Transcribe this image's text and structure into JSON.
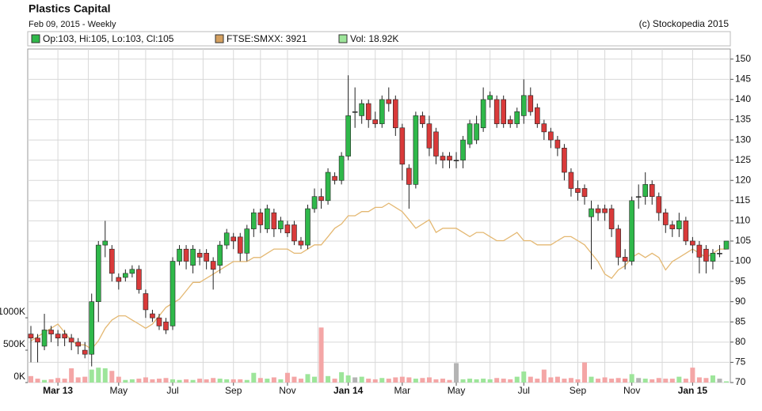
{
  "header": {
    "title": "Plastics Capital",
    "subtitle": "Feb 09, 2015 - Weekly",
    "copyright": "(c) Stockopedia 2015"
  },
  "legend": [
    "Op:103, Hi:105, Lo:103, Cl:105",
    "FTSE:SMXX: 3921",
    "Vol: 18.92K"
  ],
  "legend_colors": [
    "#2fb84a",
    "#d4a060",
    "#9de59a"
  ],
  "chart_data": {
    "type": "candlestick",
    "categories": [
      null,
      null,
      null,
      null,
      "Mar 13",
      null,
      null,
      null,
      null,
      null,
      null,
      null,
      null,
      "May",
      null,
      null,
      null,
      null,
      null,
      null,
      null,
      "Jul",
      null,
      null,
      null,
      null,
      null,
      null,
      null,
      null,
      "Sep",
      null,
      null,
      null,
      null,
      null,
      null,
      null,
      "Nov",
      null,
      null,
      null,
      null,
      null,
      null,
      null,
      null,
      "Jan 14",
      null,
      null,
      null,
      null,
      null,
      null,
      null,
      "Mar",
      null,
      null,
      null,
      null,
      null,
      null,
      null,
      "May",
      null,
      null,
      null,
      null,
      null,
      null,
      null,
      null,
      null,
      "Jul",
      null,
      null,
      null,
      null,
      null,
      null,
      null,
      "Sep",
      null,
      null,
      null,
      null,
      null,
      null,
      null,
      "Nov",
      null,
      null,
      null,
      null,
      null,
      null,
      null,
      null,
      "Jan 15",
      null,
      null,
      null,
      null,
      null
    ],
    "open": [
      82,
      81,
      79,
      83,
      82,
      82,
      81,
      80,
      78,
      77,
      90,
      104,
      103,
      96,
      96,
      97,
      98,
      92,
      87,
      86,
      85,
      84,
      100,
      103,
      99,
      102,
      102,
      100,
      99,
      104,
      106,
      106,
      102,
      108,
      112,
      108,
      112,
      108,
      109,
      109,
      105,
      104,
      113,
      116,
      115,
      121,
      120,
      126,
      137,
      136,
      139,
      135,
      134,
      140,
      140,
      133,
      123,
      119,
      136,
      134,
      132,
      126,
      126,
      125,
      125,
      129,
      130,
      133,
      140,
      140,
      140,
      135,
      134,
      136,
      141,
      138,
      134,
      132,
      130,
      128,
      122,
      118,
      118,
      111,
      113,
      113,
      113,
      108,
      101,
      100,
      116,
      116,
      119,
      116,
      112,
      109,
      108,
      110,
      105,
      104,
      103,
      100,
      102,
      103
    ],
    "high": [
      84,
      82,
      87,
      84,
      83,
      83,
      82,
      81,
      80,
      92,
      105,
      110,
      104,
      97,
      98,
      99,
      99,
      93,
      88,
      87,
      86,
      101,
      104,
      104,
      104,
      103,
      103,
      101,
      105,
      108,
      107,
      107,
      109,
      113,
      113,
      114,
      113,
      111,
      110,
      110,
      106,
      114,
      118,
      118,
      123,
      122,
      127,
      146,
      143,
      140,
      140,
      137,
      141,
      143,
      141,
      134,
      124,
      137,
      137,
      136,
      133,
      127,
      127,
      127,
      131,
      135,
      136,
      143,
      142,
      141,
      141,
      136,
      138,
      145,
      143,
      139,
      135,
      133,
      131,
      129,
      123,
      120,
      119,
      115,
      114,
      114,
      114,
      109,
      103,
      116,
      119,
      122,
      120,
      117,
      113,
      110,
      112,
      111,
      106,
      105,
      104,
      103,
      104,
      105
    ],
    "low": [
      75,
      75,
      78,
      80,
      79,
      79,
      78,
      77,
      76,
      74,
      85,
      101,
      95,
      93,
      95,
      96,
      92,
      86,
      85,
      83,
      82,
      83,
      99,
      98,
      97,
      99,
      98,
      93,
      97,
      103,
      103,
      100,
      100,
      106,
      107,
      107,
      106,
      107,
      106,
      104,
      103,
      103,
      112,
      113,
      114,
      119,
      119,
      125,
      133,
      134,
      133,
      133,
      133,
      137,
      131,
      120,
      113,
      118,
      133,
      126,
      124,
      123,
      123,
      123,
      123,
      128,
      129,
      132,
      138,
      133,
      133,
      133,
      133,
      134,
      136,
      133,
      130,
      128,
      126,
      120,
      116,
      115,
      114,
      98,
      110,
      110,
      106,
      99,
      98,
      99,
      113,
      114,
      114,
      110,
      107,
      106,
      106,
      104,
      102,
      97,
      97,
      98,
      101,
      103
    ],
    "close": [
      81,
      80,
      83,
      82,
      81,
      81,
      80,
      79,
      77,
      90,
      104,
      105,
      97,
      95,
      97,
      98,
      93,
      88,
      86,
      84,
      83,
      100,
      103,
      100,
      103,
      101,
      100,
      98,
      104,
      107,
      105,
      102,
      108,
      112,
      109,
      113,
      108,
      110,
      107,
      105,
      104,
      113,
      116,
      115,
      122,
      120,
      126,
      136,
      137,
      139,
      135,
      134,
      140,
      139,
      133,
      124,
      119,
      136,
      134,
      128,
      126,
      125,
      125,
      125,
      130,
      134,
      134,
      140,
      141,
      134,
      134,
      134,
      137,
      141,
      137,
      134,
      132,
      130,
      128,
      122,
      118,
      117,
      116,
      113,
      112,
      112,
      108,
      101,
      100,
      115,
      116,
      119,
      116,
      112,
      109,
      108,
      110,
      105,
      104,
      101,
      100,
      102,
      102,
      105
    ],
    "volume": [
      100000,
      60000,
      40000,
      50000,
      70000,
      60000,
      220000,
      80000,
      90000,
      200000,
      230000,
      220000,
      180000,
      90000,
      40000,
      50000,
      60000,
      80000,
      50000,
      60000,
      70000,
      50000,
      40000,
      50000,
      40000,
      60000,
      50000,
      70000,
      60000,
      50000,
      50000,
      50000,
      40000,
      150000,
      70000,
      60000,
      80000,
      50000,
      150000,
      90000,
      60000,
      130000,
      90000,
      850000,
      100000,
      60000,
      160000,
      110000,
      80000,
      90000,
      60000,
      50000,
      70000,
      60000,
      80000,
      90000,
      80000,
      60000,
      70000,
      80000,
      50000,
      60000,
      40000,
      300000,
      50000,
      60000,
      50000,
      60000,
      50000,
      70000,
      60000,
      50000,
      90000,
      170000,
      90000,
      60000,
      200000,
      80000,
      90000,
      60000,
      70000,
      50000,
      310000,
      90000,
      60000,
      80000,
      60000,
      70000,
      60000,
      130000,
      70000,
      60000,
      50000,
      70000,
      60000,
      60000,
      90000,
      60000,
      230000,
      80000,
      70000,
      110000,
      60000,
      18920
    ],
    "ftse": [
      3287,
      3316,
      3345,
      3374,
      3403,
      3345,
      3287,
      3259,
      3259,
      3230,
      3287,
      3374,
      3431,
      3460,
      3460,
      3431,
      3403,
      3374,
      3403,
      3460,
      3518,
      3547,
      3575,
      3633,
      3691,
      3691,
      3719,
      3748,
      3777,
      3806,
      3835,
      3835,
      3835,
      3863,
      3863,
      3892,
      3921,
      3921,
      3921,
      3892,
      3892,
      3921,
      3950,
      3950,
      4007,
      4065,
      4094,
      4151,
      4151,
      4180,
      4180,
      4209,
      4209,
      4238,
      4209,
      4180,
      4123,
      4065,
      4094,
      4123,
      4036,
      4065,
      4065,
      4065,
      4036,
      4007,
      4036,
      4036,
      4007,
      3979,
      3979,
      4007,
      4036,
      3979,
      3979,
      3950,
      3950,
      3950,
      3979,
      4007,
      4007,
      3979,
      3950,
      3892,
      3835,
      3748,
      3719,
      3777,
      3806,
      3863,
      3892,
      3863,
      3892,
      3863,
      3777,
      3835,
      3863,
      3892,
      3921,
      3892,
      3863,
      3892,
      3921,
      3921
    ],
    "up_color": "#2fb84a",
    "down_color": "#d93a3a",
    "flat_color": "#555555",
    "volume_colors": [
      "#9de59a",
      "#f4a6a6",
      "#b4b4b4"
    ],
    "ftse_color": "#e4b872",
    "ylim": [
      70,
      152.5
    ],
    "yticks": [
      70,
      75,
      80,
      85,
      90,
      95,
      100,
      105,
      110,
      115,
      120,
      125,
      130,
      135,
      140,
      145,
      150
    ],
    "y2lim": [
      0,
      5150000
    ],
    "y2ticks": [
      {
        "value": 0,
        "label": "0K"
      },
      {
        "value": 500000,
        "label": "500K"
      },
      {
        "value": 1000000,
        "label": "1000K"
      }
    ],
    "y3lim": [
      2999,
      5303
    ],
    "grid": true
  }
}
